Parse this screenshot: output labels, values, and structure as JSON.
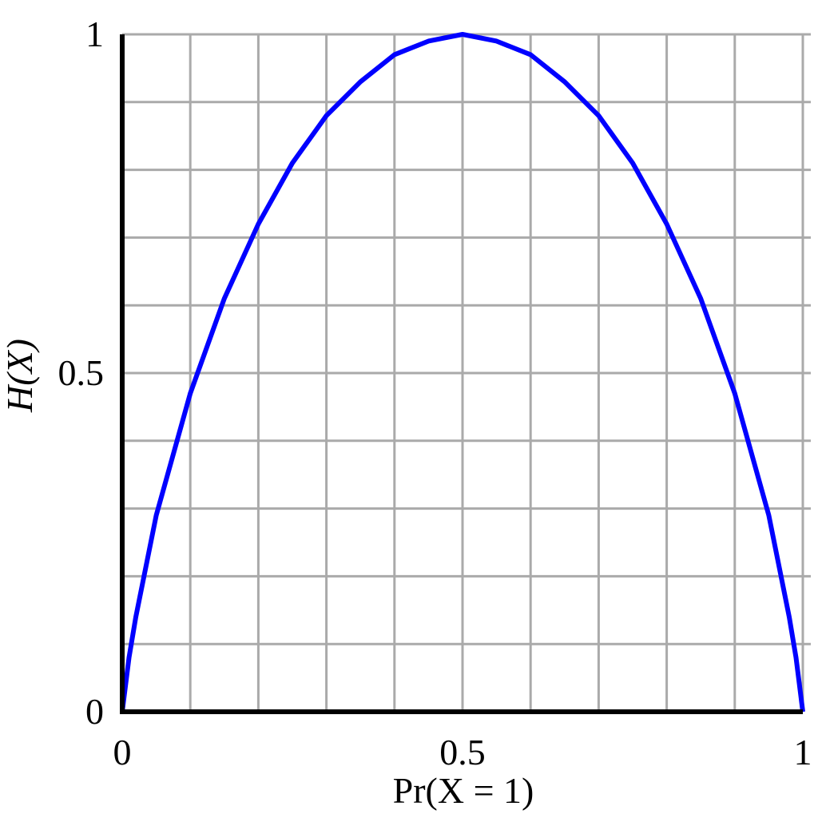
{
  "chart_data": {
    "type": "line",
    "x_label": "Pr(X = 1)",
    "y_label": "H(X)",
    "x": [
      0,
      0.01,
      0.02,
      0.05,
      0.1,
      0.15,
      0.2,
      0.25,
      0.3,
      0.35,
      0.4,
      0.45,
      0.5,
      0.55,
      0.6,
      0.65,
      0.7,
      0.75,
      0.8,
      0.85,
      0.9,
      0.95,
      0.98,
      0.99,
      1
    ],
    "series": [
      {
        "color": "#0000ff",
        "values": [
          0,
          0.08,
          0.14,
          0.29,
          0.47,
          0.61,
          0.72,
          0.81,
          0.88,
          0.93,
          0.97,
          0.99,
          1,
          0.99,
          0.97,
          0.93,
          0.88,
          0.81,
          0.72,
          0.61,
          0.47,
          0.29,
          0.14,
          0.08,
          0
        ]
      }
    ],
    "xlim": [
      0,
      1
    ],
    "ylim": [
      0,
      1
    ],
    "xticks": [
      0,
      0.5,
      1
    ],
    "yticks": [
      0,
      0.5,
      1
    ],
    "xgrid": [
      0.1,
      0.2,
      0.3,
      0.4,
      0.5,
      0.6,
      0.7,
      0.8,
      0.9,
      1
    ],
    "ygrid": [
      0.1,
      0.2,
      0.3,
      0.4,
      0.5,
      0.6,
      0.7,
      0.8,
      0.9,
      1
    ],
    "grid": true
  }
}
